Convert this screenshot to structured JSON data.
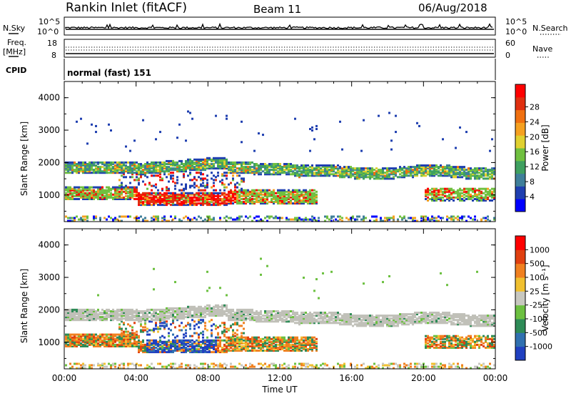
{
  "header": {
    "title": "Rankin Inlet (fitACF)",
    "beam": "Beam 11",
    "date": "06/Aug/2018"
  },
  "params": {
    "nsky_label": "N.Sky",
    "nsearch_label": "N.Search",
    "nsky_ticks": [
      "10^5",
      "10^0"
    ],
    "nsearch_ticks": [
      "10^5",
      "10^0"
    ],
    "freq_label_1": "Freq.",
    "freq_label_2": "[MHz]",
    "freq_ticks": [
      "18",
      "8"
    ],
    "nave_label": "Nave",
    "nave_ticks": [
      "60",
      "0"
    ],
    "cpid_label": "CPID",
    "cpid_value": "normal (fast) 151"
  },
  "chart_data": [
    {
      "type": "heatmap",
      "quantity": "Power",
      "ylabel": "Slant Range [km]",
      "xlabel": "Time UT",
      "xticks": [
        "00:00",
        "04:00",
        "08:00",
        "12:00",
        "16:00",
        "20:00",
        "00:00"
      ],
      "xlim_hours": [
        0,
        24
      ],
      "yticks": [
        "1000",
        "2000",
        "3000",
        "4000"
      ],
      "ylim": [
        180,
        4500
      ],
      "colorbar": {
        "label": "Power [dB]",
        "ticks": [
          "4",
          "8",
          "12",
          "16",
          "20",
          "24",
          "28"
        ],
        "range": [
          0,
          30
        ],
        "colors": [
          "#0000ff",
          "#1f3fb0",
          "#3f7f9a",
          "#3fa060",
          "#70c040",
          "#e0d030",
          "#f5a020",
          "#f07010",
          "#e03010",
          "#ff0000"
        ]
      }
    },
    {
      "type": "heatmap",
      "quantity": "Velocity",
      "ylabel": "Slant Range [km]",
      "xlabel": "Time UT",
      "xticks": [
        "00:00",
        "04:00",
        "08:00",
        "12:00",
        "16:00",
        "20:00",
        "00:00"
      ],
      "xlim_hours": [
        0,
        24
      ],
      "yticks": [
        "1000",
        "2000",
        "3000",
        "4000"
      ],
      "ylim": [
        180,
        4500
      ],
      "colorbar": {
        "label": "Velocity [m s⁻¹]",
        "ticks": [
          "1000",
          "500",
          "100",
          "25",
          "-25",
          "-100",
          "-500",
          "-1000"
        ],
        "colors": [
          "#2040c0",
          "#3070b0",
          "#2e8b57",
          "#6cc040",
          "#c8c8c0",
          "#f0c030",
          "#f08020",
          "#e04010",
          "#ff0000"
        ]
      }
    }
  ],
  "colors": {
    "ground_scatter": "#c0c0b8",
    "frame": "#000000"
  }
}
